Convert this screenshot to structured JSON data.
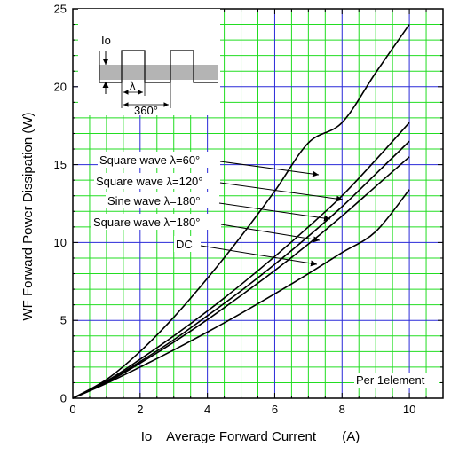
{
  "chart_data": {
    "type": "line",
    "title": "",
    "xlabel": "Io    Average Forward Current       (A)",
    "ylabel": "WF     Forward Power Dissipation     (W)",
    "xlim": [
      0,
      11
    ],
    "ylim": [
      0,
      25
    ],
    "x_ticks": [
      0,
      2,
      4,
      6,
      8,
      10
    ],
    "y_ticks": [
      0,
      5,
      10,
      15,
      20,
      25
    ],
    "grid": true,
    "colors": {
      "major_grid": "#2a2ad8",
      "minor_grid": "#22dd22",
      "curves": "#000000"
    },
    "series": [
      {
        "name": "Square wave λ=60°",
        "x": [
          0,
          1,
          2,
          3,
          4,
          5,
          6,
          7,
          8,
          9,
          10
        ],
        "y": [
          0,
          1.2,
          3.0,
          5.2,
          7.7,
          10.4,
          13.3,
          16.4,
          17.7,
          20.9,
          24.0
        ]
      },
      {
        "name": "Square wave λ=120°",
        "x": [
          0,
          1,
          2,
          3,
          4,
          5,
          6,
          7,
          8,
          9,
          10
        ],
        "y": [
          0,
          1.1,
          2.5,
          4.0,
          5.6,
          7.3,
          9.1,
          11.0,
          13.0,
          15.3,
          17.7
        ]
      },
      {
        "name": "Sine wave λ=180°",
        "x": [
          0,
          1,
          2,
          3,
          4,
          5,
          6,
          7,
          8,
          9,
          10
        ],
        "y": [
          0,
          1.05,
          2.35,
          3.75,
          5.3,
          6.9,
          8.6,
          10.4,
          12.3,
          14.4,
          16.5
        ]
      },
      {
        "name": "Square wave λ=180°",
        "x": [
          0,
          1,
          2,
          3,
          4,
          5,
          6,
          7,
          8,
          9,
          10
        ],
        "y": [
          0,
          1.0,
          2.25,
          3.6,
          5.05,
          6.6,
          8.2,
          9.9,
          11.7,
          13.6,
          15.5
        ]
      },
      {
        "name": "DC",
        "x": [
          0,
          1,
          2,
          3,
          4,
          5,
          6,
          7,
          8,
          9,
          10
        ],
        "y": [
          0,
          0.95,
          2.0,
          3.1,
          4.25,
          5.45,
          6.7,
          8.0,
          9.35,
          10.7,
          13.4
        ]
      }
    ],
    "annotations": [
      {
        "text": "Square wave λ=60°",
        "arrow_to": [
          7.0,
          14.3
        ]
      },
      {
        "text": "Square wave λ=120°",
        "arrow_to": [
          7.6,
          12.6
        ]
      },
      {
        "text": "Sine wave λ=180°",
        "arrow_to": [
          7.4,
          11.4
        ]
      },
      {
        "text": "Square wave λ=180°",
        "arrow_to": [
          7.0,
          10.0
        ]
      },
      {
        "text": "DC",
        "arrow_to": [
          7.0,
          8.5
        ]
      },
      {
        "text": "Per 1element"
      }
    ],
    "inset": {
      "labels": [
        "Io",
        "λ",
        "360°"
      ]
    }
  }
}
